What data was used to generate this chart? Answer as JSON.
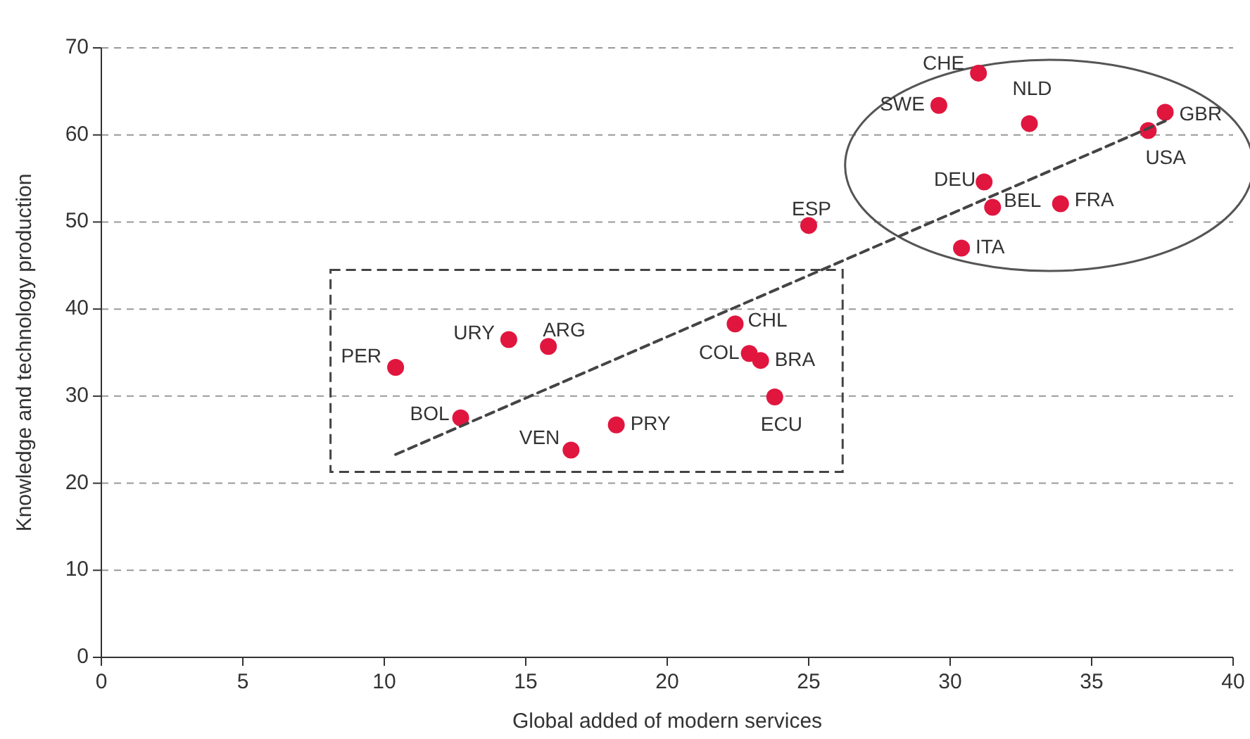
{
  "chart_data": {
    "type": "scatter",
    "xlabel": "Global added of modern services",
    "ylabel": "Knowledge and technology production",
    "xlim": [
      0,
      40
    ],
    "xticks": [
      0,
      5,
      10,
      15,
      20,
      25,
      30,
      35,
      40
    ],
    "ylim": [
      0,
      70
    ],
    "yticks": [
      0,
      10,
      20,
      30,
      40,
      50,
      60,
      70
    ],
    "grid": "y",
    "marker": "circle",
    "series": [
      {
        "color": "#e0163f",
        "x": [
          10.4,
          12.7,
          14.4,
          15.8,
          16.6,
          18.2,
          22.4,
          22.9,
          23.3,
          23.8,
          25.0,
          31.0,
          29.6,
          32.8,
          37.6,
          37.0,
          31.2,
          31.5,
          33.9,
          30.4
        ],
        "values": [
          33.3,
          27.5,
          36.5,
          35.7,
          23.8,
          26.7,
          38.3,
          34.9,
          34.1,
          29.9,
          49.6,
          67.1,
          63.4,
          61.3,
          62.6,
          60.5,
          54.6,
          51.7,
          52.1,
          47.0
        ]
      },
      {
        "type": "line",
        "color": "#444444",
        "marker": "none",
        "line_style": "dashed",
        "x": [
          10.4,
          37.6
        ],
        "values": [
          23.3,
          61.6
        ]
      }
    ],
    "annotations": [
      {
        "text": "PER",
        "x": 10.4,
        "y": 33.3
      },
      {
        "text": "BOL",
        "x": 12.7,
        "y": 27.5
      },
      {
        "text": "URY",
        "x": 14.4,
        "y": 36.5
      },
      {
        "text": "ARG",
        "x": 15.8,
        "y": 35.7
      },
      {
        "text": "VEN",
        "x": 16.6,
        "y": 23.8
      },
      {
        "text": "PRY",
        "x": 18.2,
        "y": 26.7
      },
      {
        "text": "CHL",
        "x": 22.4,
        "y": 38.3
      },
      {
        "text": "COL",
        "x": 22.9,
        "y": 34.9
      },
      {
        "text": "BRA",
        "x": 23.3,
        "y": 34.1
      },
      {
        "text": "ECU",
        "x": 23.8,
        "y": 29.9
      },
      {
        "text": "ESP",
        "x": 25.0,
        "y": 49.6
      },
      {
        "text": "CHE",
        "x": 31.0,
        "y": 67.1
      },
      {
        "text": "SWE",
        "x": 29.6,
        "y": 63.4
      },
      {
        "text": "NLD",
        "x": 32.8,
        "y": 61.3
      },
      {
        "text": "GBR",
        "x": 37.6,
        "y": 62.6
      },
      {
        "text": "USA",
        "x": 37.0,
        "y": 60.5
      },
      {
        "text": "DEU",
        "x": 31.2,
        "y": 54.6
      },
      {
        "text": "BEL",
        "x": 31.5,
        "y": 51.7
      },
      {
        "text": "FRA",
        "x": 33.9,
        "y": 52.1
      },
      {
        "text": "ITA",
        "x": 30.4,
        "y": 47.0
      }
    ]
  }
}
